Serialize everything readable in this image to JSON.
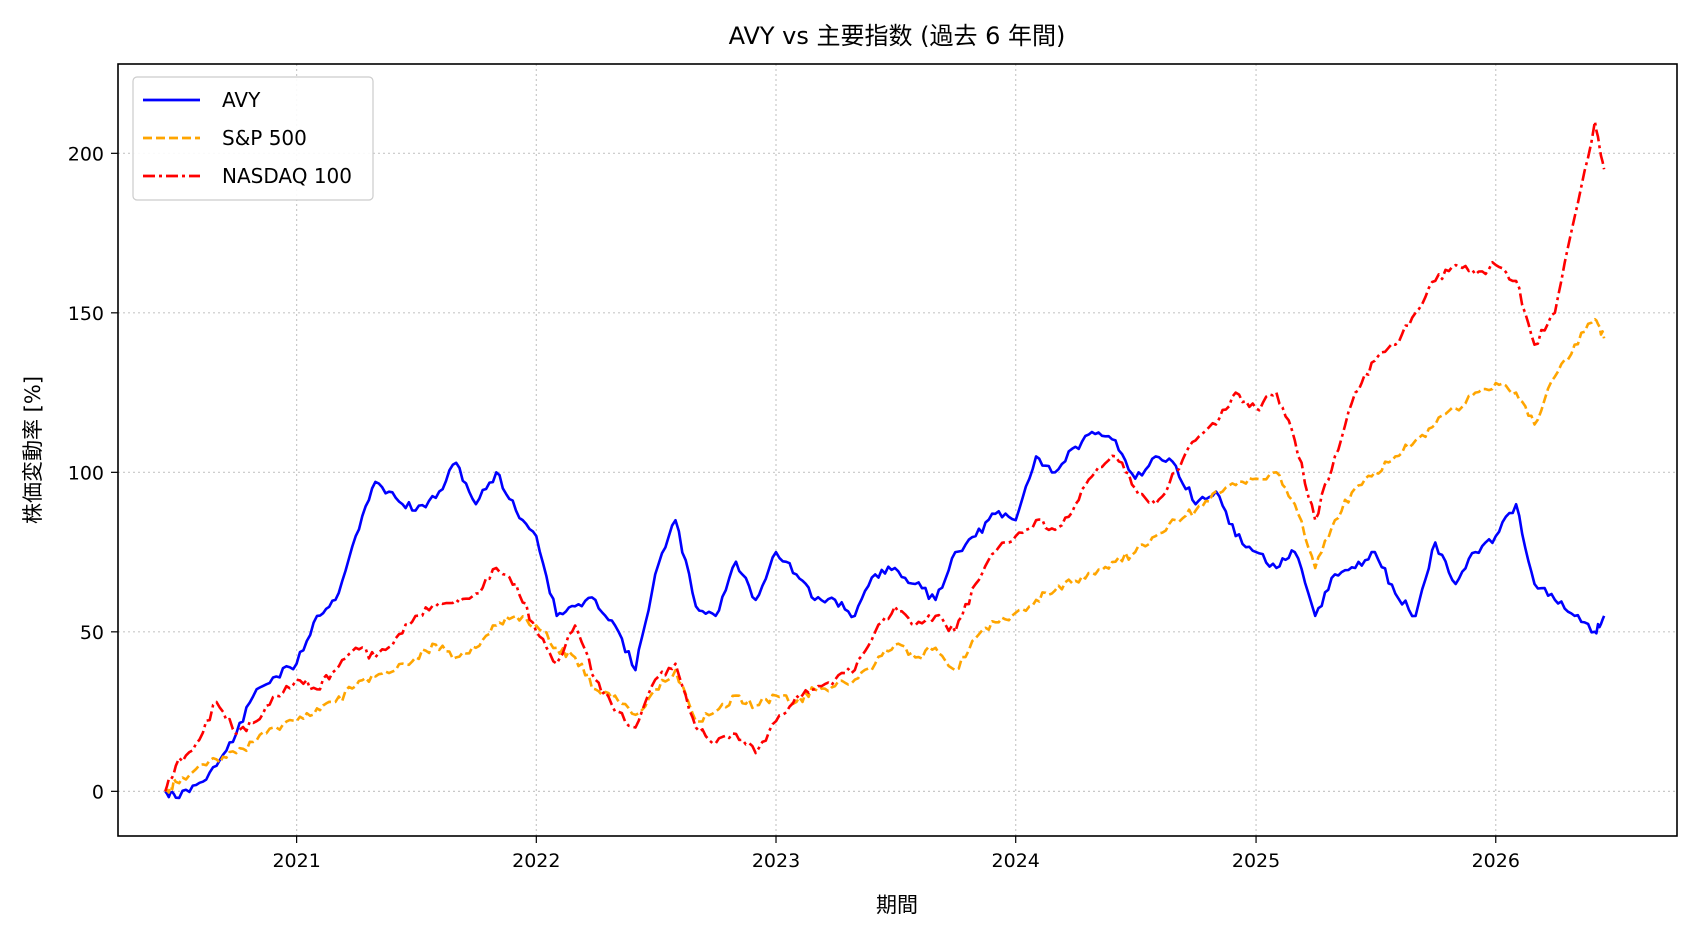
{
  "chart_data": {
    "type": "line",
    "title": "AVY vs 主要指数 (過去 6 年間)",
    "xlabel": "期間",
    "ylabel": "株価変動率 [%]",
    "xlim": [
      "2020-04-04",
      "2026-10-04"
    ],
    "ylim": [
      -14,
      228
    ],
    "x_ticks": [
      "2021",
      "2022",
      "2023",
      "2024",
      "2025",
      "2026"
    ],
    "y_ticks": [
      0,
      50,
      100,
      150,
      200
    ],
    "grid": true,
    "legend_position": "top-left",
    "series": [
      {
        "name": "AVY",
        "color": "#0000ff",
        "style": "solid",
        "x": [
          "2020-06-15",
          "2020-07-01",
          "2020-08-01",
          "2020-09-01",
          "2020-10-01",
          "2020-11-01",
          "2020-12-01",
          "2021-01-01",
          "2021-02-01",
          "2021-03-01",
          "2021-04-01",
          "2021-05-01",
          "2021-06-01",
          "2021-07-01",
          "2021-08-01",
          "2021-09-01",
          "2021-10-01",
          "2021-11-01",
          "2021-12-01",
          "2022-01-01",
          "2022-02-01",
          "2022-03-01",
          "2022-04-01",
          "2022-05-01",
          "2022-06-01",
          "2022-07-01",
          "2022-08-01",
          "2022-09-01",
          "2022-10-01",
          "2022-11-01",
          "2022-12-01",
          "2023-01-01",
          "2023-02-01",
          "2023-03-01",
          "2023-04-01",
          "2023-05-01",
          "2023-06-01",
          "2023-07-01",
          "2023-08-01",
          "2023-09-01",
          "2023-10-01",
          "2023-11-01",
          "2023-12-01",
          "2024-01-01",
          "2024-02-01",
          "2024-03-01",
          "2024-04-01",
          "2024-05-01",
          "2024-06-01",
          "2024-07-01",
          "2024-08-01",
          "2024-09-01",
          "2024-10-01",
          "2024-11-01",
          "2024-12-01",
          "2025-01-01",
          "2025-02-01",
          "2025-03-01",
          "2025-04-01",
          "2025-05-01",
          "2025-06-01",
          "2025-07-01",
          "2025-08-01",
          "2025-09-01",
          "2025-10-01",
          "2025-11-01",
          "2025-12-01",
          "2026-01-01",
          "2026-02-01",
          "2026-03-01",
          "2026-04-01",
          "2026-05-01",
          "2026-06-01",
          "2026-06-15"
        ],
        "values": [
          0,
          -2,
          2,
          8,
          18,
          32,
          36,
          40,
          55,
          60,
          80,
          97,
          92,
          88,
          92,
          103,
          90,
          100,
          88,
          80,
          55,
          58,
          60,
          52,
          38,
          68,
          85,
          58,
          55,
          72,
          60,
          75,
          68,
          60,
          60,
          55,
          68,
          70,
          65,
          60,
          75,
          80,
          87,
          85,
          105,
          100,
          108,
          112,
          110,
          98,
          105,
          102,
          90,
          94,
          80,
          75,
          70,
          75,
          55,
          68,
          70,
          75,
          62,
          55,
          78,
          65,
          75,
          80,
          90,
          65,
          60,
          55,
          50,
          55
        ]
      },
      {
        "name": "S&P 500",
        "color": "#ffa500",
        "style": "dashed",
        "x": [
          "2020-06-15",
          "2020-07-01",
          "2020-08-01",
          "2020-09-01",
          "2020-10-01",
          "2020-11-01",
          "2020-12-01",
          "2021-01-01",
          "2021-02-01",
          "2021-03-01",
          "2021-04-01",
          "2021-05-01",
          "2021-06-01",
          "2021-07-01",
          "2021-08-01",
          "2021-09-01",
          "2021-10-01",
          "2021-11-01",
          "2021-12-01",
          "2022-01-01",
          "2022-02-01",
          "2022-03-01",
          "2022-04-01",
          "2022-05-01",
          "2022-06-01",
          "2022-07-01",
          "2022-08-01",
          "2022-09-01",
          "2022-10-01",
          "2022-11-01",
          "2022-12-01",
          "2023-01-01",
          "2023-02-01",
          "2023-03-01",
          "2023-04-01",
          "2023-05-01",
          "2023-06-01",
          "2023-07-01",
          "2023-08-01",
          "2023-09-01",
          "2023-10-01",
          "2023-11-01",
          "2023-12-01",
          "2024-01-01",
          "2024-02-01",
          "2024-03-01",
          "2024-04-01",
          "2024-05-01",
          "2024-06-01",
          "2024-07-01",
          "2024-08-01",
          "2024-09-01",
          "2024-10-01",
          "2024-11-01",
          "2024-12-01",
          "2025-01-01",
          "2025-02-01",
          "2025-03-01",
          "2025-04-01",
          "2025-05-01",
          "2025-06-01",
          "2025-07-01",
          "2025-08-01",
          "2025-09-01",
          "2025-10-01",
          "2025-11-01",
          "2025-12-01",
          "2026-01-01",
          "2026-02-01",
          "2026-03-01",
          "2026-04-01",
          "2026-05-01",
          "2026-06-01",
          "2026-06-15"
        ],
        "values": [
          0,
          3,
          7,
          10,
          12,
          16,
          20,
          22,
          26,
          28,
          33,
          36,
          38,
          42,
          46,
          42,
          45,
          52,
          55,
          52,
          45,
          42,
          32,
          30,
          24,
          32,
          38,
          22,
          25,
          30,
          27,
          30,
          28,
          32,
          33,
          35,
          40,
          46,
          42,
          45,
          38,
          48,
          53,
          56,
          60,
          63,
          66,
          68,
          72,
          75,
          80,
          85,
          88,
          94,
          96,
          98,
          100,
          90,
          70,
          85,
          95,
          100,
          105,
          110,
          115,
          120,
          125,
          128,
          125,
          115,
          130,
          140,
          148,
          142
        ]
      },
      {
        "name": "NASDAQ 100",
        "color": "#ff0000",
        "style": "dashdot",
        "x": [
          "2020-06-15",
          "2020-07-01",
          "2020-08-01",
          "2020-09-01",
          "2020-10-01",
          "2020-11-01",
          "2020-12-01",
          "2021-01-01",
          "2021-02-01",
          "2021-03-01",
          "2021-04-01",
          "2021-05-01",
          "2021-06-01",
          "2021-07-01",
          "2021-08-01",
          "2021-09-01",
          "2021-10-01",
          "2021-11-01",
          "2021-12-01",
          "2022-01-01",
          "2022-02-01",
          "2022-03-01",
          "2022-04-01",
          "2022-05-01",
          "2022-06-01",
          "2022-07-01",
          "2022-08-01",
          "2022-09-01",
          "2022-10-01",
          "2022-11-01",
          "2022-12-01",
          "2023-01-01",
          "2023-02-01",
          "2023-03-01",
          "2023-04-01",
          "2023-05-01",
          "2023-06-01",
          "2023-07-01",
          "2023-08-01",
          "2023-09-01",
          "2023-10-01",
          "2023-11-01",
          "2023-12-01",
          "2024-01-01",
          "2024-02-01",
          "2024-03-01",
          "2024-04-01",
          "2024-05-01",
          "2024-06-01",
          "2024-07-01",
          "2024-08-01",
          "2024-09-01",
          "2024-10-01",
          "2024-11-01",
          "2024-12-01",
          "2025-01-01",
          "2025-02-01",
          "2025-03-01",
          "2025-04-01",
          "2025-05-01",
          "2025-06-01",
          "2025-07-01",
          "2025-08-01",
          "2025-09-01",
          "2025-10-01",
          "2025-11-01",
          "2025-12-01",
          "2026-01-01",
          "2026-02-01",
          "2026-03-01",
          "2026-04-01",
          "2026-05-01",
          "2026-06-01",
          "2026-06-15"
        ],
        "values": [
          0,
          8,
          15,
          28,
          18,
          22,
          30,
          35,
          32,
          38,
          45,
          42,
          48,
          55,
          58,
          60,
          62,
          70,
          65,
          50,
          40,
          52,
          35,
          25,
          20,
          35,
          40,
          20,
          15,
          18,
          12,
          22,
          30,
          32,
          35,
          38,
          50,
          58,
          52,
          55,
          50,
          65,
          75,
          80,
          85,
          82,
          90,
          100,
          105,
          95,
          90,
          100,
          110,
          115,
          125,
          120,
          125,
          110,
          85,
          105,
          125,
          135,
          140,
          150,
          160,
          165,
          162,
          165,
          160,
          140,
          150,
          180,
          210,
          195
        ]
      }
    ]
  }
}
